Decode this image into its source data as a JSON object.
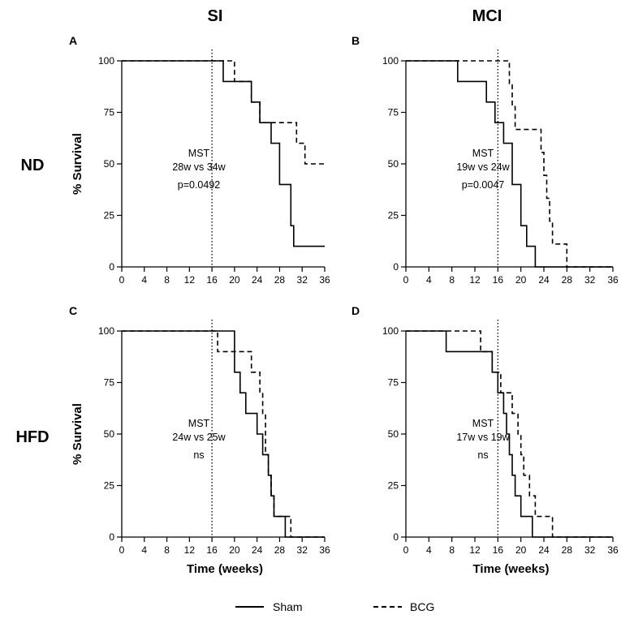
{
  "column_titles": [
    "SI",
    "MCI"
  ],
  "row_titles": [
    "ND",
    "HFD"
  ],
  "legend": [
    {
      "label": "Sham",
      "style": "solid"
    },
    {
      "label": "BCG",
      "style": "dashed"
    }
  ],
  "colors": {
    "line": "#000000",
    "background": "#ffffff"
  },
  "chart_data": [
    {
      "panel": "A",
      "type": "line",
      "step": true,
      "ylabel": "% Survival",
      "xlabel": "",
      "xlim": [
        0,
        36
      ],
      "ylim": [
        0,
        100
      ],
      "x_ticks": [
        "0",
        "4",
        "8",
        "12",
        "16",
        "20",
        "24",
        "28",
        "32",
        "36"
      ],
      "y_ticks": [
        "0",
        "25",
        "50",
        "75",
        "100"
      ],
      "vline_x": 16,
      "annotation": [
        "MST",
        "28w vs 34w",
        "p=0.0492"
      ],
      "series": [
        {
          "name": "Sham",
          "style": "solid",
          "points": [
            [
              0,
              100
            ],
            [
              18,
              100
            ],
            [
              18,
              90
            ],
            [
              23,
              90
            ],
            [
              23,
              80
            ],
            [
              24.5,
              80
            ],
            [
              24.5,
              70
            ],
            [
              26.5,
              70
            ],
            [
              26.5,
              60
            ],
            [
              28,
              60
            ],
            [
              28,
              40
            ],
            [
              30,
              40
            ],
            [
              30,
              20
            ],
            [
              30.5,
              20
            ],
            [
              30.5,
              10
            ],
            [
              36,
              10
            ]
          ]
        },
        {
          "name": "BCG",
          "style": "dashed",
          "points": [
            [
              0,
              100
            ],
            [
              20,
              100
            ],
            [
              20,
              90
            ],
            [
              23,
              90
            ],
            [
              23,
              80
            ],
            [
              24.5,
              80
            ],
            [
              24.5,
              70
            ],
            [
              31,
              70
            ],
            [
              31,
              60
            ],
            [
              32.5,
              60
            ],
            [
              32.5,
              50
            ],
            [
              36,
              50
            ]
          ]
        }
      ]
    },
    {
      "panel": "B",
      "type": "line",
      "step": true,
      "ylabel": "",
      "xlabel": "",
      "xlim": [
        0,
        36
      ],
      "ylim": [
        0,
        100
      ],
      "x_ticks": [
        "0",
        "4",
        "8",
        "12",
        "16",
        "20",
        "24",
        "28",
        "32",
        "36"
      ],
      "y_ticks": [
        "0",
        "25",
        "50",
        "75",
        "100"
      ],
      "vline_x": 16,
      "annotation": [
        "MST",
        "19w vs 24w",
        "p=0.0047"
      ],
      "series": [
        {
          "name": "Sham",
          "style": "solid",
          "points": [
            [
              0,
              100
            ],
            [
              9,
              100
            ],
            [
              9,
              90
            ],
            [
              14,
              90
            ],
            [
              14,
              80
            ],
            [
              15.5,
              80
            ],
            [
              15.5,
              70
            ],
            [
              17,
              70
            ],
            [
              17,
              60
            ],
            [
              18.5,
              60
            ],
            [
              18.5,
              40
            ],
            [
              20,
              40
            ],
            [
              20,
              20
            ],
            [
              21,
              20
            ],
            [
              21,
              10
            ],
            [
              22.5,
              10
            ],
            [
              22.5,
              0
            ],
            [
              36,
              0
            ]
          ]
        },
        {
          "name": "BCG",
          "style": "dashed",
          "points": [
            [
              0,
              100
            ],
            [
              18,
              100
            ],
            [
              18,
              89
            ],
            [
              18.5,
              89
            ],
            [
              18.5,
              77.8
            ],
            [
              19,
              77.8
            ],
            [
              19,
              66.7
            ],
            [
              23.5,
              66.7
            ],
            [
              23.5,
              55.6
            ],
            [
              24,
              55.6
            ],
            [
              24,
              44.4
            ],
            [
              24.5,
              44.4
            ],
            [
              24.5,
              33.3
            ],
            [
              25,
              33.3
            ],
            [
              25,
              22.2
            ],
            [
              25.5,
              22.2
            ],
            [
              25.5,
              11.1
            ],
            [
              28,
              11.1
            ],
            [
              28,
              0
            ],
            [
              36,
              0
            ]
          ]
        }
      ]
    },
    {
      "panel": "C",
      "type": "line",
      "step": true,
      "ylabel": "% Survival",
      "xlabel": "Time (weeks)",
      "xlim": [
        0,
        36
      ],
      "ylim": [
        0,
        100
      ],
      "x_ticks": [
        "0",
        "4",
        "8",
        "12",
        "16",
        "20",
        "24",
        "28",
        "32",
        "36"
      ],
      "y_ticks": [
        "0",
        "25",
        "50",
        "75",
        "100"
      ],
      "vline_x": 16,
      "annotation": [
        "MST",
        "24w vs 25w",
        "ns"
      ],
      "series": [
        {
          "name": "Sham",
          "style": "solid",
          "points": [
            [
              0,
              100
            ],
            [
              20,
              100
            ],
            [
              20,
              80
            ],
            [
              21,
              80
            ],
            [
              21,
              70
            ],
            [
              22,
              70
            ],
            [
              22,
              60
            ],
            [
              24,
              60
            ],
            [
              24,
              50
            ],
            [
              25,
              50
            ],
            [
              25,
              40
            ],
            [
              26,
              40
            ],
            [
              26,
              30
            ],
            [
              26.5,
              30
            ],
            [
              26.5,
              20
            ],
            [
              27,
              20
            ],
            [
              27,
              10
            ],
            [
              29,
              10
            ],
            [
              29,
              0
            ],
            [
              36,
              0
            ]
          ]
        },
        {
          "name": "BCG",
          "style": "dashed",
          "points": [
            [
              0,
              100
            ],
            [
              17,
              100
            ],
            [
              17,
              90
            ],
            [
              20,
              90
            ],
            [
              20,
              90
            ],
            [
              23,
              90
            ],
            [
              23,
              80
            ],
            [
              24.5,
              80
            ],
            [
              24.5,
              70
            ],
            [
              25,
              70
            ],
            [
              25,
              60
            ],
            [
              25.5,
              60
            ],
            [
              25.5,
              40
            ],
            [
              26,
              40
            ],
            [
              26,
              30
            ],
            [
              26.5,
              30
            ],
            [
              26.5,
              20
            ],
            [
              27,
              20
            ],
            [
              27,
              10
            ],
            [
              30,
              10
            ],
            [
              30,
              0
            ],
            [
              36,
              0
            ]
          ]
        }
      ]
    },
    {
      "panel": "D",
      "type": "line",
      "step": true,
      "ylabel": "",
      "xlabel": "Time (weeks)",
      "xlim": [
        0,
        36
      ],
      "ylim": [
        0,
        100
      ],
      "x_ticks": [
        "0",
        "4",
        "8",
        "12",
        "16",
        "20",
        "24",
        "28",
        "32",
        "36"
      ],
      "y_ticks": [
        "0",
        "25",
        "50",
        "75",
        "100"
      ],
      "vline_x": 16,
      "annotation": [
        "MST",
        "17w vs 19w",
        "ns"
      ],
      "series": [
        {
          "name": "Sham",
          "style": "solid",
          "points": [
            [
              0,
              100
            ],
            [
              7,
              100
            ],
            [
              7,
              90
            ],
            [
              15,
              90
            ],
            [
              15,
              80
            ],
            [
              16,
              80
            ],
            [
              16,
              70
            ],
            [
              17,
              70
            ],
            [
              17,
              60
            ],
            [
              17.5,
              60
            ],
            [
              17.5,
              50
            ],
            [
              18,
              50
            ],
            [
              18,
              40
            ],
            [
              18.5,
              40
            ],
            [
              18.5,
              30
            ],
            [
              19,
              30
            ],
            [
              19,
              20
            ],
            [
              20,
              20
            ],
            [
              20,
              10
            ],
            [
              22,
              10
            ],
            [
              22,
              0
            ],
            [
              36,
              0
            ]
          ]
        },
        {
          "name": "BCG",
          "style": "dashed",
          "points": [
            [
              0,
              100
            ],
            [
              13,
              100
            ],
            [
              13,
              90
            ],
            [
              15,
              90
            ],
            [
              15,
              80
            ],
            [
              16.5,
              80
            ],
            [
              16.5,
              70
            ],
            [
              18.5,
              70
            ],
            [
              18.5,
              60
            ],
            [
              19.5,
              60
            ],
            [
              19.5,
              50
            ],
            [
              20,
              50
            ],
            [
              20,
              40
            ],
            [
              20.5,
              40
            ],
            [
              20.5,
              30
            ],
            [
              21.5,
              30
            ],
            [
              21.5,
              20
            ],
            [
              22.5,
              20
            ],
            [
              22.5,
              10
            ],
            [
              25.5,
              10
            ],
            [
              25.5,
              0
            ],
            [
              36,
              0
            ]
          ]
        }
      ]
    }
  ]
}
